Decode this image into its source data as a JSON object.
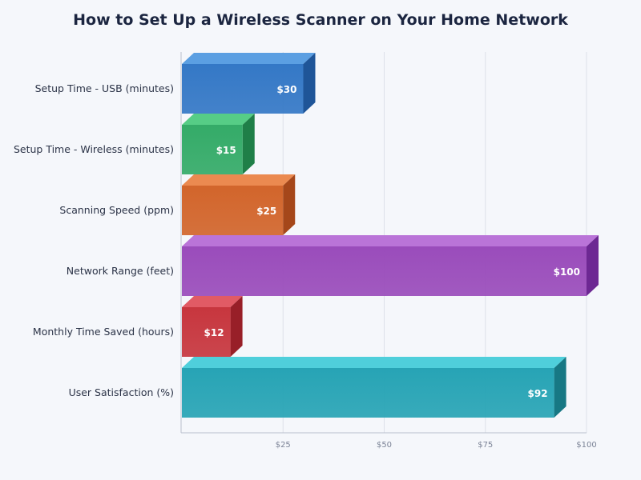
{
  "chart_data": {
    "type": "bar",
    "orientation": "horizontal",
    "title": "How to Set Up a Wireless Scanner on Your Home Network",
    "xlabel": "",
    "ylabel": "",
    "xlim": [
      0,
      100
    ],
    "grid": true,
    "legend": "none",
    "tick_values": [
      25,
      50,
      75,
      100
    ],
    "tick_labels": [
      "$25",
      "$50",
      "$75",
      "$100"
    ],
    "categories": [
      "Setup Time - USB (minutes)",
      "Setup Time - Wireless (minutes)",
      "Scanning Speed (ppm)",
      "Network Range (feet)",
      "Monthly Time Saved (hours)",
      "User Satisfaction (%)"
    ],
    "values": [
      30,
      15,
      25,
      100,
      12,
      92
    ],
    "value_labels": [
      "$30",
      "$15",
      "$25",
      "$100",
      "$12",
      "$92"
    ],
    "colors": [
      "#3478c6",
      "#34ab68",
      "#d2652b",
      "#9a4cbb",
      "#c7363e",
      "#27a4b5"
    ],
    "top_colors": [
      "#5b9fe2",
      "#56cd86",
      "#eb8a50",
      "#ba74d8",
      "#e15b65",
      "#4fcfdb"
    ],
    "side_colors": [
      "#1f5598",
      "#1f7f48",
      "#a5471a",
      "#6d2893",
      "#981f28",
      "#177884"
    ]
  }
}
